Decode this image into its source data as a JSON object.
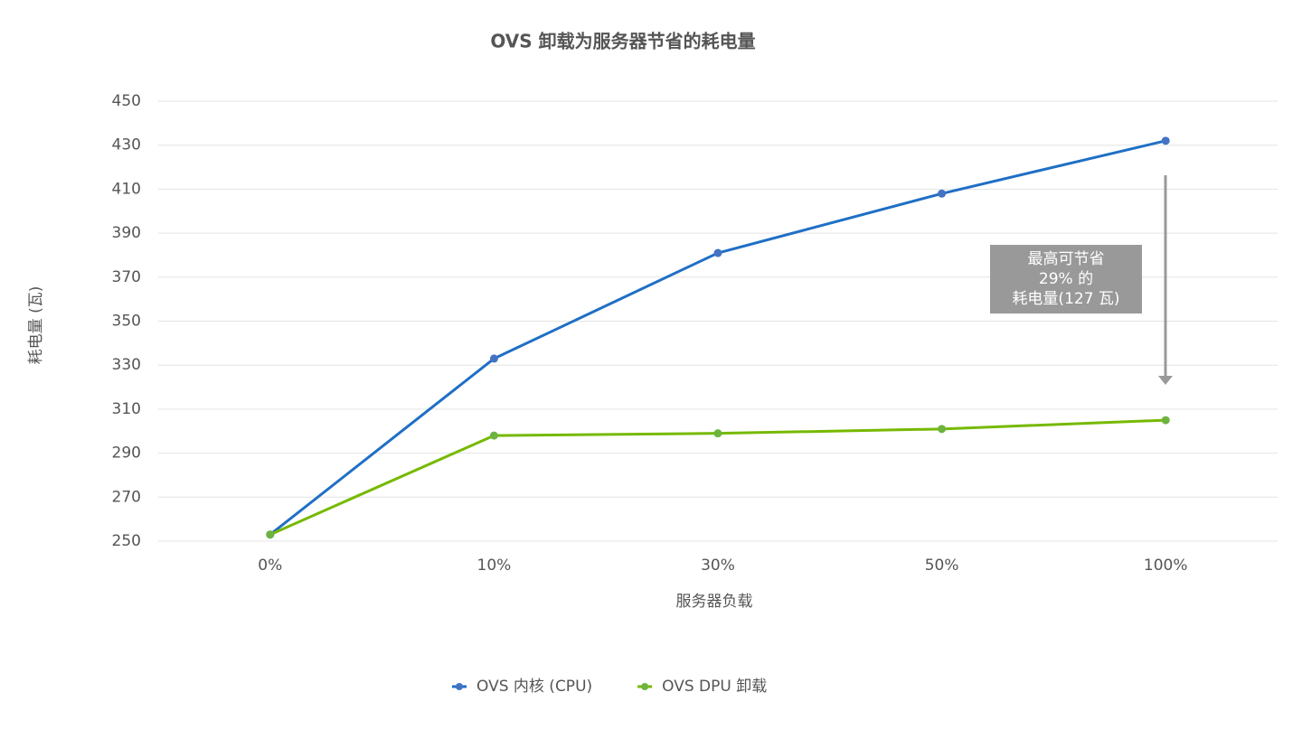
{
  "chart_data": {
    "type": "line",
    "title": "OVS 卸载为服务器节省的耗电量",
    "x_label": "服务器负载",
    "y_label": "耗电量 (瓦)",
    "categories": [
      "0%",
      "10%",
      "30%",
      "50%",
      "100%"
    ],
    "series": [
      {
        "name": "OVS 内核 (CPU)",
        "color": "#1f6fc5",
        "marker_color": "#4472c4",
        "values": [
          253,
          333,
          381,
          408,
          432
        ]
      },
      {
        "name": "OVS DPU 卸载",
        "color": "#76b900",
        "marker_color": "#6db33f",
        "values": [
          253,
          298,
          299,
          301,
          305
        ]
      }
    ],
    "ylim": [
      250,
      450
    ],
    "yticks": [
      250,
      270,
      290,
      310,
      330,
      350,
      370,
      390,
      410,
      430,
      450
    ],
    "grid": true,
    "legend": "bottom",
    "annotation": {
      "lines": [
        "最高可节省",
        "29% 的",
        "耗电量(127 瓦)"
      ]
    }
  }
}
